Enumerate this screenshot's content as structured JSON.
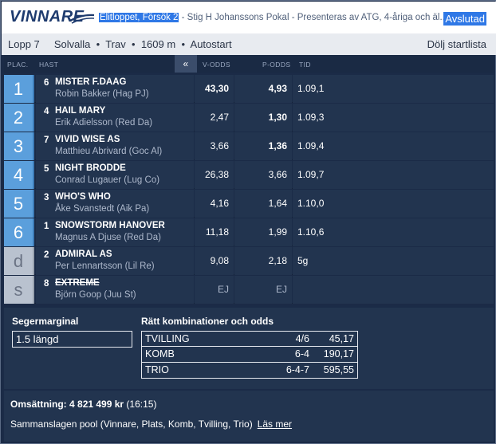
{
  "header": {
    "brand": "VINNARE",
    "race_title_highlight": "Elitloppet, Försök 2",
    "race_title_rest": " - Stig H Johanssons Pokal - Presenteras av ATG, 4-åriga och äl...",
    "status": "Avslutad"
  },
  "race": {
    "number": "Lopp 7",
    "track": "Solvalla",
    "type": "Trav",
    "distance": "1609 m",
    "start": "Autostart",
    "separator": "•",
    "toggle_label": "Dölj startlista"
  },
  "columns": {
    "placement": "PLAC.",
    "horse": "HAST",
    "collapse": "«",
    "v_odds": "V-ODDS",
    "p_odds": "P-ODDS",
    "time": "TID"
  },
  "rows": [
    {
      "place": "1",
      "num": "6",
      "horse": "MISTER F.DAAG",
      "driver": "Robin Bakker (Hag PJ)",
      "v_odds": "43,30",
      "p_odds": "4,93",
      "time": "1.09,1",
      "gray": false,
      "scratched": false,
      "v_bold": true,
      "p_bold": true
    },
    {
      "place": "2",
      "num": "4",
      "horse": "HAIL MARY",
      "driver": "Erik Adielsson (Red Da)",
      "v_odds": "2,47",
      "p_odds": "1,30",
      "time": "1.09,3",
      "gray": false,
      "scratched": false,
      "v_bold": false,
      "p_bold": true
    },
    {
      "place": "3",
      "num": "7",
      "horse": "VIVID WISE AS",
      "driver": "Matthieu Abrivard (Goc Al)",
      "v_odds": "3,66",
      "p_odds": "1,36",
      "time": "1.09,4",
      "gray": false,
      "scratched": false,
      "v_bold": false,
      "p_bold": true
    },
    {
      "place": "4",
      "num": "5",
      "horse": "NIGHT BRODDE",
      "driver": "Conrad Lugauer (Lug Co)",
      "v_odds": "26,38",
      "p_odds": "3,66",
      "time": "1.09,7",
      "gray": false,
      "scratched": false,
      "v_bold": false,
      "p_bold": false
    },
    {
      "place": "5",
      "num": "3",
      "horse": "WHO'S WHO",
      "driver": "Åke Svanstedt (Aik Pa)",
      "v_odds": "4,16",
      "p_odds": "1,64",
      "time": "1.10,0",
      "gray": false,
      "scratched": false,
      "v_bold": false,
      "p_bold": false
    },
    {
      "place": "6",
      "num": "1",
      "horse": "SNOWSTORM HANOVER",
      "driver": "Magnus A Djuse (Red Da)",
      "v_odds": "11,18",
      "p_odds": "1,99",
      "time": "1.10,6",
      "gray": false,
      "scratched": false,
      "v_bold": false,
      "p_bold": false
    },
    {
      "place": "d",
      "num": "2",
      "horse": "ADMIRAL AS",
      "driver": "Per Lennartsson (Lil Re)",
      "v_odds": "9,08",
      "p_odds": "2,18",
      "time": "5g",
      "gray": true,
      "scratched": false,
      "v_bold": false,
      "p_bold": false
    },
    {
      "place": "s",
      "num": "8",
      "horse": "EXTREME",
      "driver": "Björn Goop (Juu St)",
      "v_odds": "EJ",
      "p_odds": "EJ",
      "time": "",
      "gray": true,
      "scratched": true,
      "v_bold": false,
      "p_bold": false
    }
  ],
  "results": {
    "margin_label": "Segermarginal",
    "margin_value": "1.5 längd",
    "combo_label": "Rätt kombinationer och odds",
    "combos": [
      {
        "name": "TVILLING",
        "combination": "4/6",
        "odds": "45,17"
      },
      {
        "name": "KOMB",
        "combination": "6-4",
        "odds": "190,17"
      },
      {
        "name": "TRIO",
        "combination": "6-4-7",
        "odds": "595,55"
      }
    ]
  },
  "turnover": {
    "label": "Omsättning:",
    "amount": "4 821 499 kr",
    "time": "(16:15)",
    "pool_text": "Sammanslagen pool (Vinnare, Plats, Komb, Tvilling, Trio)",
    "read_more": "Läs mer"
  },
  "colors": {
    "background": "#1b2b47",
    "row_bg": "#22344f",
    "place_blue": "#5b9fdc",
    "place_gray": "#b9c2cf",
    "highlight": "#2f78e6"
  }
}
